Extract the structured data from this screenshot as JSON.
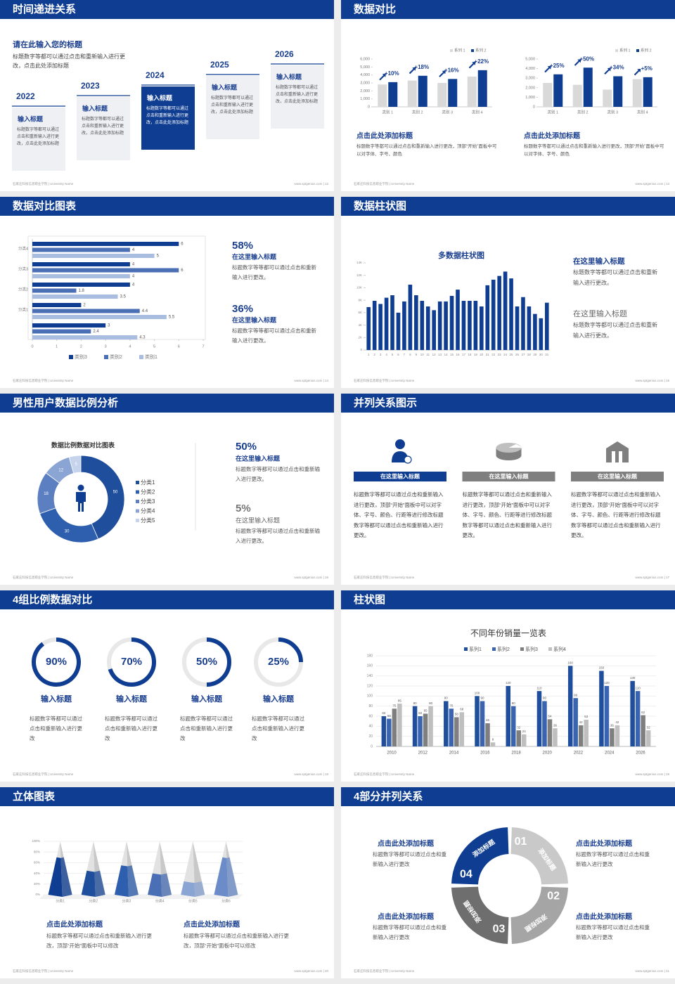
{
  "footer_left": "石家庄科技信息职业学院 | University Name",
  "slides": [
    {
      "title": "时间递进关系",
      "footer_right": "www.sptgenius.com | 12",
      "heading": "请在此输入您的标题",
      "text": "标题数字等都可以通过点击和重新输入进行更改，点击此处添加标题",
      "items": [
        {
          "year": "2022",
          "heading": "输入标题",
          "text": "标题数字等都可以通过点击和重新输入进行更改，点击此处添加标题"
        },
        {
          "year": "2023",
          "heading": "输入标题",
          "text": "标题数字等都可以通过点击和重新输入进行更改，点击此处添加标题"
        },
        {
          "year": "2024",
          "heading": "输入标题",
          "text": "标题数字等都可以通过点击和重新输入进行更改，点击此处添加标题"
        },
        {
          "year": "2025",
          "heading": "输入标题",
          "text": "标题数字等都可以通过点击和重新输入进行更改，点击此处添加标题"
        },
        {
          "year": "2026",
          "heading": "输入标题",
          "text": "标题数字等都可以通过点击和重新输入进行更改，点击此处添加标题"
        }
      ]
    },
    {
      "title": "数据对比",
      "footer_right": "www.sptgenius.com | 13",
      "charts": [
        {
          "type": "bar",
          "categories": [
            "类别 1",
            "类别 2",
            "类别 3",
            "类别 4"
          ],
          "series": [
            {
              "name": "系列 1",
              "color": "#d9d9d9",
              "values": [
                2800,
                3300,
                3000,
                3800
              ]
            },
            {
              "name": "系列 2",
              "color": "#0e3d91",
              "values": [
                3100,
                3900,
                3500,
                4600
              ]
            }
          ],
          "annotations": [
            "+10%",
            "+18%",
            "+16%",
            "+22%"
          ],
          "ylim": [
            0,
            6000
          ],
          "yticks": [
            0,
            {
              "value": 1000,
              "label": "1,000"
            },
            {
              "value": 2000,
              "label": "2,000"
            },
            {
              "value": 3000,
              "label": "3,000"
            },
            {
              "value": 4000,
              "label": "4,000"
            },
            {
              "value": 5000,
              "label": "5,000"
            },
            {
              "value": 6000,
              "label": "6,000"
            }
          ]
        },
        {
          "type": "bar",
          "categories": [
            "类别 1",
            "类别 2",
            "类别 3",
            "类别 4"
          ],
          "series": [
            {
              "name": "系列 1",
              "color": "#d9d9d9",
              "values": [
                2500,
                2300,
                1800,
                2900
              ]
            },
            {
              "name": "系列 2",
              "color": "#0e3d91",
              "values": [
                3400,
                4100,
                3200,
                3100
              ]
            }
          ],
          "annotations": [
            "+25%",
            "+50%",
            "+34%",
            "+5%"
          ],
          "ylim": [
            0,
            5000
          ],
          "yticks": [
            0,
            {
              "value": 1000,
              "label": "1,000"
            },
            {
              "value": 2000,
              "label": "2,000"
            },
            {
              "value": 3000,
              "label": "3,000"
            },
            {
              "value": 4000,
              "label": "4,000"
            },
            {
              "value": 5000,
              "label": "5,000"
            }
          ]
        }
      ],
      "blocks": [
        {
          "heading": "点击此处添加标题",
          "text": "标题数字等都可以通过点击和重新输入进行更改，顶部“开始”面板中可以对字体、字号、颜色"
        },
        {
          "heading": "点击此处添加标题",
          "text": "标题数字等都可以通过点击和重新输入进行更改，顶部“开始”面板中可以对字体、字号、颜色"
        }
      ]
    },
    {
      "title": "数据对比图表",
      "footer_right": "www.sptgenius.com | 14",
      "chart": {
        "type": "hbar",
        "categories": [
          null,
          "分类1",
          "分类2",
          "分类3",
          "分类4"
        ],
        "series": [
          {
            "name": "类别3",
            "color": "#0e3d91",
            "values": [
              3,
              2,
              4,
              4,
              6
            ]
          },
          {
            "name": "类别2",
            "color": "#4a6fb5",
            "values": [
              2.4,
              4.4,
              1.8,
              6,
              4
            ]
          },
          {
            "name": "类别1",
            "color": "#a9bde0",
            "values": [
              4.3,
              5.5,
              3.5,
              4,
              5
            ]
          }
        ],
        "xlim": [
          0,
          7
        ],
        "xticks": [
          0,
          1,
          2,
          3,
          4,
          5,
          6,
          7
        ]
      },
      "items": [
        {
          "stat": "58%",
          "heading": "在这里输入标题",
          "text": "标题数字等等都可以通过点击和重新输入进行更改。"
        },
        {
          "stat": "36%",
          "heading": "在这里输入标题",
          "text": "标题数字等等都可以通过点击和重新输入进行更改。"
        }
      ]
    },
    {
      "title": "数据柱状图",
      "footer_right": "www.sptgenius.com | 15",
      "chart": {
        "type": "bar",
        "title": "多数据柱状图",
        "color": "#0e3d91",
        "categories": [
          "1",
          "2",
          "3",
          "4",
          "5",
          "6",
          "7",
          "8",
          "9",
          "10",
          "11",
          "12",
          "13",
          "14",
          "15",
          "16",
          "17",
          "18",
          "19",
          "20",
          "21",
          "22",
          "23",
          "24",
          "25",
          "26",
          "27",
          "28",
          "29",
          "30",
          "31"
        ],
        "values": [
          6900,
          7900,
          7400,
          8400,
          8800,
          6000,
          7800,
          10500,
          8800,
          7900,
          7000,
          6400,
          7800,
          7800,
          8700,
          9700,
          7900,
          7900,
          7900,
          7000,
          10400,
          11300,
          11900,
          12600,
          11500,
          7000,
          8500,
          7000,
          5800,
          5100,
          7600
        ],
        "ylim": [
          0,
          14000
        ],
        "yticks": [
          0,
          {
            "value": 2000,
            "label": "2K"
          },
          {
            "value": 4000,
            "label": "4K"
          },
          {
            "value": 6000,
            "label": "6K"
          },
          {
            "value": 8000,
            "label": "8K"
          },
          {
            "value": 10000,
            "label": "10K"
          },
          {
            "value": 12000,
            "label": "12K"
          },
          {
            "value": 14000,
            "label": "14K"
          }
        ]
      },
      "items": [
        {
          "heading": "在这里输入标题",
          "text": "标题数字等都可以通过点击和重新输入进行更改。"
        },
        {
          "heading": "在这里输入标题",
          "text": "标题数字等都可以通过点击和重新输入进行更改。"
        }
      ]
    },
    {
      "title": "男性用户数据比例分析",
      "footer_right": "www.sptgenius.com | 16",
      "chart": {
        "type": "donut",
        "title": "数据比例数据对比图表",
        "categories": [
          "分类1",
          "分类2",
          "分类3",
          "分类4",
          "分类5"
        ],
        "values": [
          50,
          30,
          18,
          12,
          5
        ],
        "colors": [
          "#1f4e9c",
          "#2e5fae",
          "#5b7fc0",
          "#8aa4d4",
          "#c5d3ec"
        ]
      },
      "items": [
        {
          "stat": "50%",
          "heading": "在这里输入标题",
          "text": "标题数字等都可以通过点击和重新输入进行更改。"
        },
        {
          "stat": "5%",
          "heading": "在这里输入标题",
          "text": "标题数字等都可以通过点击和重新输入进行更改。"
        }
      ]
    },
    {
      "title": "并列关系图示",
      "footer_right": "www.sptgenius.com | 17",
      "items": [
        {
          "label": "在这里输入标题",
          "text": "标题数字等都可以通过点击和重新输入进行更改，顶部“开始”面板中可以对字体、字号、颜色、行距等进行修改标题数字等都可以通过点击和重新输入进行更改。"
        },
        {
          "label": "在这里输入标题",
          "text": "标题数字等都可以通过点击和重新输入进行更改，顶部“开始”面板中可以对字体、字号、颜色、行距等进行修改标题数字等都可以通过点击和重新输入进行更改。"
        },
        {
          "label": "在这里输入标题",
          "text": "标题数字等都可以通过点击和重新输入进行更改，顶部“开始”面板中可以对字体、字号、颜色、行距等进行修改标题数字等都可以通过点击和重新输入进行更改。"
        }
      ]
    },
    {
      "title": "4组比例数据对比",
      "footer_right": "www.sptgenius.com | 18",
      "chart": {
        "type": "ring",
        "values": [
          90,
          70,
          50,
          25
        ],
        "value_labels": [
          "90%",
          "70%",
          "50%",
          "25%"
        ],
        "color": "#0e3d91"
      },
      "items": [
        {
          "heading": "输入标题",
          "text": "标题数字等都可以通过点击和重新输入进行更改"
        },
        {
          "heading": "输入标题",
          "text": "标题数字等都可以通过点击和重新输入进行更改"
        },
        {
          "heading": "输入标题",
          "text": "标题数字等都可以通过点击和重新输入进行更改"
        },
        {
          "heading": "输入标题",
          "text": "标题数字等都可以通过点击和重新输入进行更改"
        }
      ]
    },
    {
      "title": "柱状图",
      "footer_right": "www.sptgenius.com | 19",
      "chart": {
        "type": "bar",
        "title": "不同年份销量一览表",
        "categories": [
          "2010",
          "2012",
          "2014",
          "2016",
          "2018",
          "2020",
          "2022",
          "2024",
          "2026"
        ],
        "series": [
          {
            "name": "系列1",
            "color": "#1f4e9c",
            "values": [
              60,
              80,
              90,
              100,
              120,
              110,
              160,
              150,
              130
            ]
          },
          {
            "name": "系列2",
            "color": "#3a64b0",
            "values": [
              55,
              60,
              75,
              90,
              80,
              90,
              96,
              120,
              110
            ]
          },
          {
            "name": "系列3",
            "color": "#7f7f7f",
            "values": [
              75,
              65,
              58,
              46,
              32,
              54,
              42,
              36,
              62
            ]
          },
          {
            "name": "系列4",
            "color": "#bfbfbf",
            "values": [
              85,
              80,
              68,
              8,
              24,
              36,
              53,
              42,
              32
            ]
          }
        ],
        "ylim": [
          0,
          180
        ],
        "yticks": [
          0,
          20,
          40,
          60,
          80,
          100,
          120,
          140,
          160,
          180
        ],
        "grid": true
      }
    },
    {
      "title": "立体图表",
      "footer_right": "www.sptgenius.com | 20",
      "chart": {
        "type": "pyramid",
        "categories": [
          "分类1",
          "分类2",
          "分类3",
          "分类4",
          "分类5",
          "分类6"
        ],
        "values": [
          70,
          45,
          55,
          40,
          25,
          70
        ],
        "colors": [
          "#0e3d91",
          "#1f4e9c",
          "#2e5fae",
          "#4a6fb5",
          "#8aa4d4",
          "#6b8cc8"
        ],
        "ylim": [
          0,
          100
        ],
        "yticks": [
          {
            "value": 0,
            "label": "0%"
          },
          {
            "value": 20,
            "label": "20%"
          },
          {
            "value": 40,
            "label": "40%"
          },
          {
            "value": 60,
            "label": "60%"
          },
          {
            "value": 80,
            "label": "80%"
          },
          {
            "value": 100,
            "label": "100%"
          }
        ]
      },
      "blocks": [
        {
          "heading": "点击此处添加标题",
          "text": "标题数字等都可以通过点击和重新输入进行更改，顶部“开始”面板中可以修改"
        },
        {
          "heading": "点击此处添加标题",
          "text": "标题数字等都可以通过点击和重新输入进行更改，顶部“开始”面板中可以修改"
        }
      ]
    },
    {
      "title": "4部分并列关系",
      "footer_right": "www.sptgenius.com | 21",
      "segments": [
        {
          "number": "01",
          "label": "添加标题"
        },
        {
          "number": "02",
          "label": "添加标题"
        },
        {
          "number": "03",
          "label": "添加标题"
        },
        {
          "number": "04",
          "label": "添加标题"
        }
      ],
      "items": [
        {
          "heading": "点击此处添加标题",
          "text": "标题数字等都可以通过点击和重新输入进行更改"
        },
        {
          "heading": "点击此处添加标题",
          "text": "标题数字等都可以通过点击和重新输入进行更改"
        },
        {
          "heading": "点击此处添加标题",
          "text": "标题数字等都可以通过点击和重新输入进行更改"
        },
        {
          "heading": "点击此处添加标题",
          "text": "标题数字等都可以通过点击和重新输入进行更改"
        }
      ]
    }
  ]
}
